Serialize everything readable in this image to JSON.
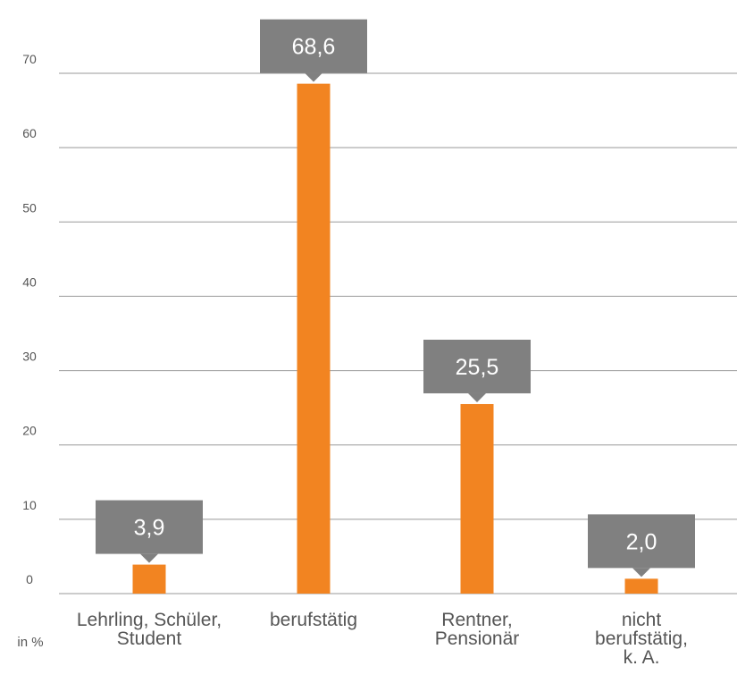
{
  "chart_data": {
    "type": "bar",
    "categories": [
      [
        "Lehrling, Schüler,",
        "Student"
      ],
      [
        "berufstätig"
      ],
      [
        "Rentner,",
        "Pensionär"
      ],
      [
        "nicht",
        "berufstätig,",
        "k. A."
      ]
    ],
    "values": [
      3.9,
      68.6,
      25.5,
      2.0
    ],
    "value_labels": [
      "3,9",
      "68,6",
      "25,5",
      "2,0"
    ],
    "ylim": [
      0,
      70
    ],
    "yticks": [
      0,
      10,
      20,
      30,
      40,
      50,
      60,
      70
    ],
    "unit_label": "in %",
    "grid": true,
    "colors": {
      "bar": "#f28421",
      "callout": "#808080",
      "grid": "#999999",
      "text": "#555555"
    }
  }
}
